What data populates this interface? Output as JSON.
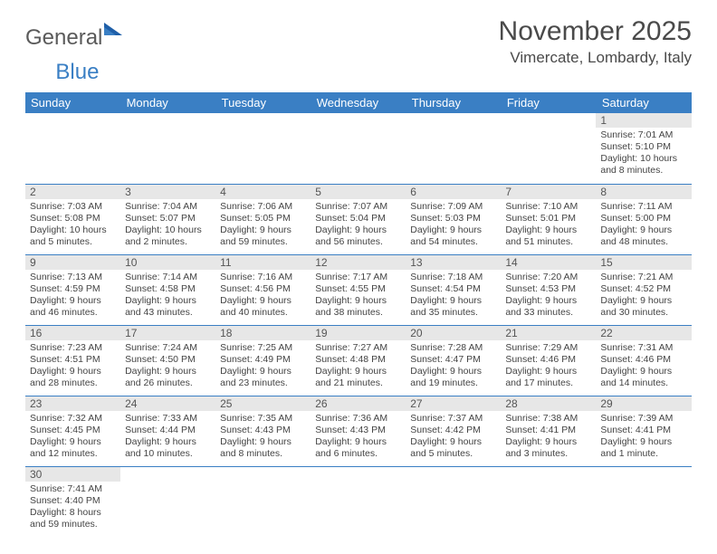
{
  "logo": {
    "general": "General",
    "blue": "Blue"
  },
  "title": "November 2025",
  "location": "Vimercate, Lombardy, Italy",
  "colors": {
    "header_bg": "#3a7fc4",
    "header_text": "#ffffff",
    "daynum_bg": "#e7e7e7",
    "border": "#3a7fc4",
    "text": "#444444"
  },
  "weekdays": [
    "Sunday",
    "Monday",
    "Tuesday",
    "Wednesday",
    "Thursday",
    "Friday",
    "Saturday"
  ],
  "weeks": [
    [
      null,
      null,
      null,
      null,
      null,
      null,
      {
        "n": "1",
        "sr": "Sunrise: 7:01 AM",
        "ss": "Sunset: 5:10 PM",
        "dl": "Daylight: 10 hours and 8 minutes."
      }
    ],
    [
      {
        "n": "2",
        "sr": "Sunrise: 7:03 AM",
        "ss": "Sunset: 5:08 PM",
        "dl": "Daylight: 10 hours and 5 minutes."
      },
      {
        "n": "3",
        "sr": "Sunrise: 7:04 AM",
        "ss": "Sunset: 5:07 PM",
        "dl": "Daylight: 10 hours and 2 minutes."
      },
      {
        "n": "4",
        "sr": "Sunrise: 7:06 AM",
        "ss": "Sunset: 5:05 PM",
        "dl": "Daylight: 9 hours and 59 minutes."
      },
      {
        "n": "5",
        "sr": "Sunrise: 7:07 AM",
        "ss": "Sunset: 5:04 PM",
        "dl": "Daylight: 9 hours and 56 minutes."
      },
      {
        "n": "6",
        "sr": "Sunrise: 7:09 AM",
        "ss": "Sunset: 5:03 PM",
        "dl": "Daylight: 9 hours and 54 minutes."
      },
      {
        "n": "7",
        "sr": "Sunrise: 7:10 AM",
        "ss": "Sunset: 5:01 PM",
        "dl": "Daylight: 9 hours and 51 minutes."
      },
      {
        "n": "8",
        "sr": "Sunrise: 7:11 AM",
        "ss": "Sunset: 5:00 PM",
        "dl": "Daylight: 9 hours and 48 minutes."
      }
    ],
    [
      {
        "n": "9",
        "sr": "Sunrise: 7:13 AM",
        "ss": "Sunset: 4:59 PM",
        "dl": "Daylight: 9 hours and 46 minutes."
      },
      {
        "n": "10",
        "sr": "Sunrise: 7:14 AM",
        "ss": "Sunset: 4:58 PM",
        "dl": "Daylight: 9 hours and 43 minutes."
      },
      {
        "n": "11",
        "sr": "Sunrise: 7:16 AM",
        "ss": "Sunset: 4:56 PM",
        "dl": "Daylight: 9 hours and 40 minutes."
      },
      {
        "n": "12",
        "sr": "Sunrise: 7:17 AM",
        "ss": "Sunset: 4:55 PM",
        "dl": "Daylight: 9 hours and 38 minutes."
      },
      {
        "n": "13",
        "sr": "Sunrise: 7:18 AM",
        "ss": "Sunset: 4:54 PM",
        "dl": "Daylight: 9 hours and 35 minutes."
      },
      {
        "n": "14",
        "sr": "Sunrise: 7:20 AM",
        "ss": "Sunset: 4:53 PM",
        "dl": "Daylight: 9 hours and 33 minutes."
      },
      {
        "n": "15",
        "sr": "Sunrise: 7:21 AM",
        "ss": "Sunset: 4:52 PM",
        "dl": "Daylight: 9 hours and 30 minutes."
      }
    ],
    [
      {
        "n": "16",
        "sr": "Sunrise: 7:23 AM",
        "ss": "Sunset: 4:51 PM",
        "dl": "Daylight: 9 hours and 28 minutes."
      },
      {
        "n": "17",
        "sr": "Sunrise: 7:24 AM",
        "ss": "Sunset: 4:50 PM",
        "dl": "Daylight: 9 hours and 26 minutes."
      },
      {
        "n": "18",
        "sr": "Sunrise: 7:25 AM",
        "ss": "Sunset: 4:49 PM",
        "dl": "Daylight: 9 hours and 23 minutes."
      },
      {
        "n": "19",
        "sr": "Sunrise: 7:27 AM",
        "ss": "Sunset: 4:48 PM",
        "dl": "Daylight: 9 hours and 21 minutes."
      },
      {
        "n": "20",
        "sr": "Sunrise: 7:28 AM",
        "ss": "Sunset: 4:47 PM",
        "dl": "Daylight: 9 hours and 19 minutes."
      },
      {
        "n": "21",
        "sr": "Sunrise: 7:29 AM",
        "ss": "Sunset: 4:46 PM",
        "dl": "Daylight: 9 hours and 17 minutes."
      },
      {
        "n": "22",
        "sr": "Sunrise: 7:31 AM",
        "ss": "Sunset: 4:46 PM",
        "dl": "Daylight: 9 hours and 14 minutes."
      }
    ],
    [
      {
        "n": "23",
        "sr": "Sunrise: 7:32 AM",
        "ss": "Sunset: 4:45 PM",
        "dl": "Daylight: 9 hours and 12 minutes."
      },
      {
        "n": "24",
        "sr": "Sunrise: 7:33 AM",
        "ss": "Sunset: 4:44 PM",
        "dl": "Daylight: 9 hours and 10 minutes."
      },
      {
        "n": "25",
        "sr": "Sunrise: 7:35 AM",
        "ss": "Sunset: 4:43 PM",
        "dl": "Daylight: 9 hours and 8 minutes."
      },
      {
        "n": "26",
        "sr": "Sunrise: 7:36 AM",
        "ss": "Sunset: 4:43 PM",
        "dl": "Daylight: 9 hours and 6 minutes."
      },
      {
        "n": "27",
        "sr": "Sunrise: 7:37 AM",
        "ss": "Sunset: 4:42 PM",
        "dl": "Daylight: 9 hours and 5 minutes."
      },
      {
        "n": "28",
        "sr": "Sunrise: 7:38 AM",
        "ss": "Sunset: 4:41 PM",
        "dl": "Daylight: 9 hours and 3 minutes."
      },
      {
        "n": "29",
        "sr": "Sunrise: 7:39 AM",
        "ss": "Sunset: 4:41 PM",
        "dl": "Daylight: 9 hours and 1 minute."
      }
    ],
    [
      {
        "n": "30",
        "sr": "Sunrise: 7:41 AM",
        "ss": "Sunset: 4:40 PM",
        "dl": "Daylight: 8 hours and 59 minutes."
      },
      null,
      null,
      null,
      null,
      null,
      null
    ]
  ]
}
